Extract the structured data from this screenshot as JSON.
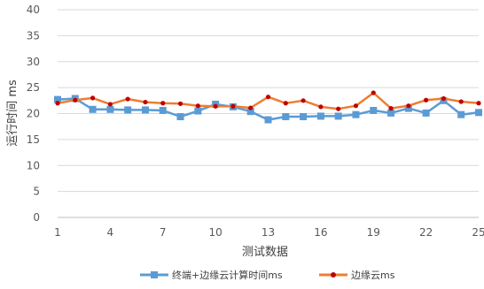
{
  "chart_data": {
    "type": "line",
    "xlabel": "测试数据",
    "ylabel": "运行时间 ms",
    "ylim": [
      0,
      40
    ],
    "yticks": [
      0,
      5,
      10,
      15,
      20,
      25,
      30,
      35,
      40
    ],
    "xticks": [
      1,
      4,
      7,
      10,
      13,
      16,
      19,
      22,
      25
    ],
    "x": [
      1,
      2,
      3,
      4,
      5,
      6,
      7,
      8,
      9,
      10,
      11,
      12,
      13,
      14,
      15,
      16,
      17,
      18,
      19,
      20,
      21,
      22,
      23,
      24,
      25
    ],
    "grid": "horizontal",
    "legend_position": "bottom",
    "series": [
      {
        "name": "终端+边缘云计算时间ms",
        "color": "#5b9bd5",
        "marker": "square",
        "values": [
          22.7,
          22.9,
          20.8,
          20.8,
          20.7,
          20.7,
          20.6,
          19.4,
          20.5,
          21.8,
          21.3,
          20.4,
          18.8,
          19.4,
          19.4,
          19.5,
          19.5,
          19.8,
          20.6,
          20.1,
          21.0,
          20.1,
          22.5,
          19.8,
          20.2
        ]
      },
      {
        "name": "边缘云ms",
        "color": "#ed7d31",
        "marker": "dot",
        "markerColor": "#c00000",
        "values": [
          22.0,
          22.6,
          23.0,
          21.8,
          22.8,
          22.2,
          22.0,
          21.9,
          21.5,
          21.4,
          21.4,
          21.1,
          23.2,
          22.0,
          22.5,
          21.3,
          20.9,
          21.5,
          24.0,
          21.0,
          21.5,
          22.6,
          22.9,
          22.3,
          22.0
        ]
      }
    ]
  }
}
